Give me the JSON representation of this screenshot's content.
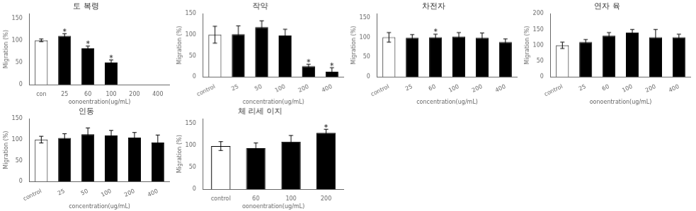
{
  "chart_data": [
    {
      "type": "bar",
      "title": "토 복령",
      "xlabel": "oonoentration(ug/mL)",
      "ylabel": "Migration (%)",
      "categories": [
        "con",
        "25",
        "60",
        "100",
        "200",
        "400"
      ],
      "values": [
        100,
        110,
        82,
        50,
        null,
        null
      ],
      "errors": [
        3,
        5,
        5,
        6,
        null,
        null
      ],
      "colors": [
        "white",
        "black",
        "black",
        "black",
        null,
        null
      ],
      "stars": [
        null,
        "*",
        "*",
        "*",
        null,
        null
      ],
      "ylim": [
        0,
        160
      ],
      "yticks": [
        0,
        50,
        100,
        150
      ],
      "grid": false
    },
    {
      "type": "bar",
      "title": "작약",
      "xlabel": "concentration(ug/mL)",
      "ylabel": "Migration (%)",
      "categories": [
        "control",
        "25",
        "50",
        "100",
        "200",
        "400"
      ],
      "values": [
        100,
        101,
        118,
        98,
        25,
        12
      ],
      "errors": [
        20,
        20,
        15,
        15,
        5,
        10
      ],
      "colors": [
        "white",
        "black",
        "black",
        "black",
        "black",
        "black"
      ],
      "stars": [
        null,
        null,
        null,
        null,
        "*",
        "*"
      ],
      "ylim": [
        0,
        150
      ],
      "yticks": [
        0,
        50,
        100,
        150
      ],
      "grid": false
    },
    {
      "type": "bar",
      "title": "차전자",
      "xlabel": "concentration(ug/mL)",
      "ylabel": "Migration (%)",
      "categories": [
        "control",
        "25",
        "60",
        "100",
        "200",
        "400"
      ],
      "values": [
        100,
        99,
        100,
        102,
        99,
        88
      ],
      "errors": [
        12,
        8,
        8,
        10,
        12,
        8
      ],
      "colors": [
        "white",
        "black",
        "black",
        "black",
        "black",
        "black"
      ],
      "stars": [
        null,
        null,
        "*",
        null,
        null,
        null
      ],
      "ylim": [
        0,
        160
      ],
      "yticks": [
        0,
        50,
        100,
        150
      ],
      "grid": false
    },
    {
      "type": "bar",
      "title": "연자 육",
      "xlabel": "oonoentration(ug/mL)",
      "ylabel": "Migration (%)",
      "categories": [
        "control",
        "25",
        "60",
        "100",
        "200",
        "400"
      ],
      "values": [
        100,
        110,
        130,
        140,
        125,
        125
      ],
      "errors": [
        10,
        8,
        10,
        10,
        25,
        10
      ],
      "colors": [
        "white",
        "black",
        "black",
        "black",
        "black",
        "black"
      ],
      "stars": [
        null,
        null,
        null,
        null,
        null,
        null
      ],
      "ylim": [
        0,
        200
      ],
      "yticks": [
        0,
        50,
        100,
        150,
        200
      ],
      "grid": false
    },
    {
      "type": "bar",
      "title": "인동",
      "xlabel": "concentration(ug/mL)",
      "ylabel": "Migration (%)",
      "categories": [
        "control",
        "25",
        "50",
        "100",
        "200",
        "400"
      ],
      "values": [
        100,
        104,
        113,
        110,
        105,
        93
      ],
      "errors": [
        8,
        10,
        15,
        12,
        12,
        18
      ],
      "colors": [
        "white",
        "black",
        "black",
        "black",
        "black",
        "black"
      ],
      "stars": [
        null,
        null,
        null,
        null,
        null,
        null
      ],
      "ylim": [
        0,
        150
      ],
      "yticks": [
        0,
        50,
        100,
        150
      ],
      "grid": false
    },
    {
      "type": "bar",
      "title": "체 리세 이지",
      "xlabel": "oonoentration(ug/mL)",
      "ylabel": "Migration (%)",
      "categories": [
        "control",
        "60",
        "100",
        "200"
      ],
      "values": [
        98,
        93,
        108,
        128
      ],
      "errors": [
        10,
        12,
        14,
        8
      ],
      "colors": [
        "white",
        "black",
        "black",
        "black"
      ],
      "stars": [
        null,
        null,
        null,
        "*"
      ],
      "ylim": [
        0,
        160
      ],
      "yticks": [
        0,
        50,
        100,
        150
      ],
      "grid": false
    }
  ]
}
